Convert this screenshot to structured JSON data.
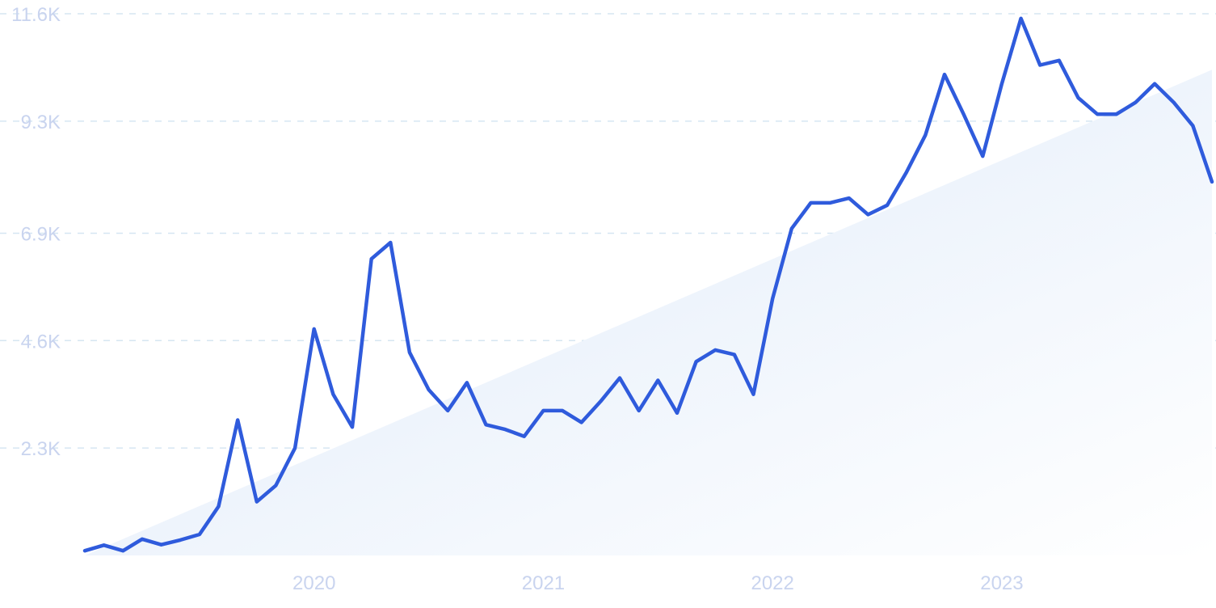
{
  "chart_data": {
    "type": "line",
    "title": "",
    "xlabel": "",
    "ylabel": "",
    "x_tick_labels": [
      "2020",
      "2021",
      "2022",
      "2023"
    ],
    "y_tick_labels": [
      "2.3K",
      "4.6K",
      "6.9K",
      "9.3K",
      "11.6K"
    ],
    "y_tick_values": [
      2300,
      4600,
      6900,
      9300,
      11600
    ],
    "ylim": [
      0,
      11600
    ],
    "xlim": [
      "2019-01",
      "2023-12"
    ],
    "grid": true,
    "legend": "none",
    "colors": {
      "line": "#2f5bdc",
      "grid": "#d6e6f2",
      "ticks": "#c9d4ef",
      "trend_fill_top": "#dde9f9",
      "trend_fill_bottom": "#ffffff"
    },
    "trend": {
      "start": {
        "x": "2019-01",
        "y": 0
      },
      "end": {
        "x": "2023-12",
        "y": 10400
      }
    },
    "series": [
      {
        "x": [
          "2019-01",
          "2019-02",
          "2019-03",
          "2019-04",
          "2019-05",
          "2019-06",
          "2019-07",
          "2019-08",
          "2019-09",
          "2019-10",
          "2019-11",
          "2019-12",
          "2020-01",
          "2020-02",
          "2020-03",
          "2020-04",
          "2020-05",
          "2020-06",
          "2020-07",
          "2020-08",
          "2020-09",
          "2020-10",
          "2020-11",
          "2020-12",
          "2021-01",
          "2021-02",
          "2021-03",
          "2021-04",
          "2021-05",
          "2021-06",
          "2021-07",
          "2021-08",
          "2021-09",
          "2021-10",
          "2021-11",
          "2021-12",
          "2022-01",
          "2022-02",
          "2022-03",
          "2022-04",
          "2022-05",
          "2022-06",
          "2022-07",
          "2022-08",
          "2022-09",
          "2022-10",
          "2022-11",
          "2022-12",
          "2023-01",
          "2023-02",
          "2023-03",
          "2023-04",
          "2023-05",
          "2023-06",
          "2023-07",
          "2023-08",
          "2023-09",
          "2023-10",
          "2023-11",
          "2023-12"
        ],
        "values": [
          100,
          220,
          100,
          350,
          230,
          330,
          450,
          1050,
          2900,
          1150,
          1500,
          2300,
          4850,
          3450,
          2750,
          6350,
          6700,
          4350,
          3550,
          3100,
          3700,
          2800,
          2700,
          2550,
          3100,
          3100,
          2850,
          3300,
          3800,
          3100,
          3750,
          3050,
          4150,
          4400,
          4300,
          3450,
          5500,
          7000,
          7550,
          7550,
          7650,
          7300,
          7500,
          8200,
          9000,
          10300,
          9450,
          8550,
          10100,
          11500,
          10500,
          10600,
          9800,
          9450,
          9450,
          9700,
          10100,
          9700,
          9200,
          8000
        ]
      }
    ]
  }
}
